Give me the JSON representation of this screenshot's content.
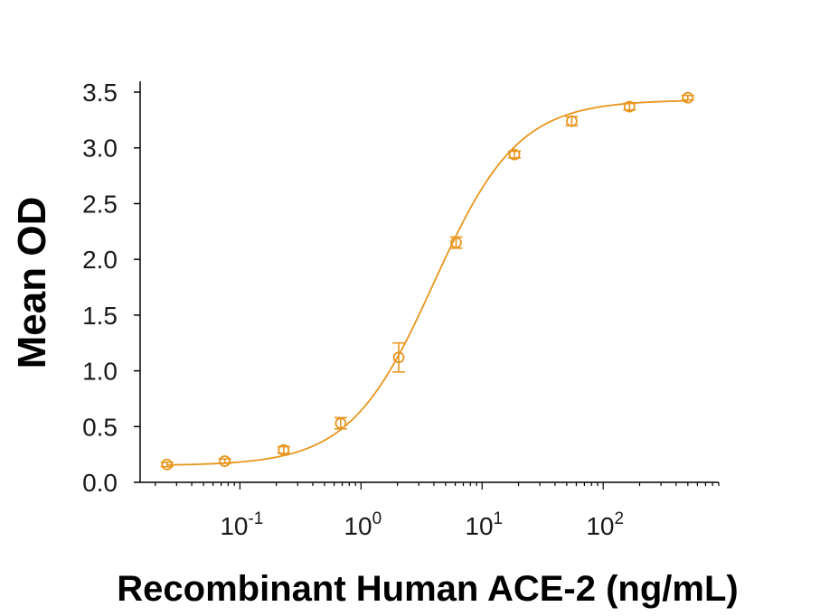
{
  "chart_data": {
    "type": "scatter",
    "xlabel": "Recombinant Human ACE-2 (ng/mL)",
    "ylabel": "Mean OD",
    "x_scale": "log",
    "x_ticks": [
      {
        "value": 0.1,
        "base": "10",
        "exp": "-1"
      },
      {
        "value": 1,
        "base": "10",
        "exp": "0"
      },
      {
        "value": 10,
        "base": "10",
        "exp": "1"
      },
      {
        "value": 100,
        "base": "10",
        "exp": "2"
      }
    ],
    "xlim": [
      0.015,
      900
    ],
    "y_ticks": [
      "0.0",
      "0.5",
      "1.0",
      "1.5",
      "2.0",
      "2.5",
      "3.0",
      "3.5"
    ],
    "ylim": [
      0,
      3.5
    ],
    "grid": false,
    "series_color": "#E8961E",
    "points": [
      {
        "x": 0.025,
        "y": 0.16,
        "err": 0.02
      },
      {
        "x": 0.075,
        "y": 0.19,
        "err": 0.02
      },
      {
        "x": 0.23,
        "y": 0.29,
        "err": 0.03
      },
      {
        "x": 0.68,
        "y": 0.53,
        "err": 0.05
      },
      {
        "x": 2.05,
        "y": 1.12,
        "err": 0.13
      },
      {
        "x": 6.1,
        "y": 2.15,
        "err": 0.05
      },
      {
        "x": 18.5,
        "y": 2.94,
        "err": 0.03
      },
      {
        "x": 55,
        "y": 3.24,
        "err": 0.04
      },
      {
        "x": 165,
        "y": 3.37,
        "err": 0.03
      },
      {
        "x": 500,
        "y": 3.45,
        "err": 0.02
      }
    ],
    "fit": {
      "model": "4PL",
      "bottom": 0.15,
      "top": 3.43,
      "ec50": 4.0,
      "hill": 1.25
    }
  }
}
